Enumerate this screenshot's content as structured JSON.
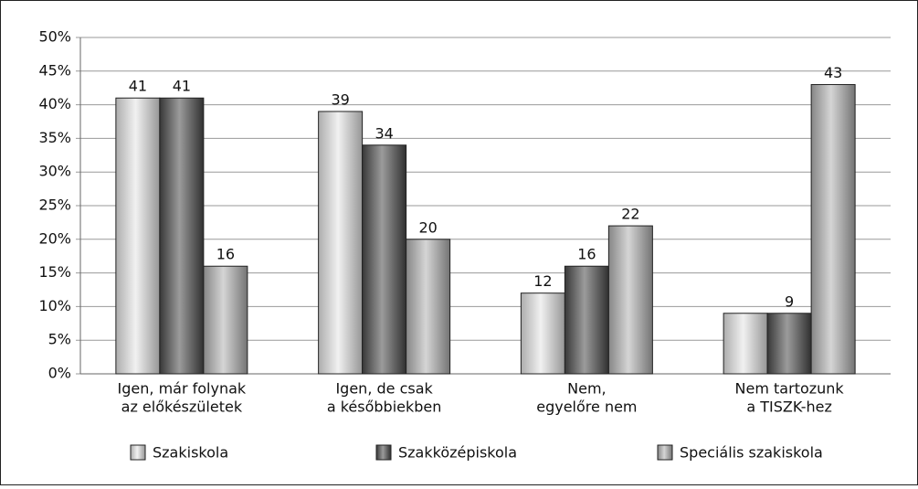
{
  "chart_data": {
    "type": "bar",
    "categories": [
      [
        "Igen, már folynak",
        "az előkészületek"
      ],
      [
        "Igen, de csak",
        "a későbbiekben"
      ],
      [
        "Nem,",
        "egyelőre nem"
      ],
      [
        "Nem tartozunk",
        "a TISZK-hez"
      ]
    ],
    "series": [
      {
        "name": "Szakiskola",
        "color": "#e6e6e6",
        "values": [
          41,
          39,
          12,
          9
        ],
        "value_labels": [
          "41",
          "39",
          "12",
          null
        ]
      },
      {
        "name": "Szakközépiskola",
        "color": "#4a4a4a",
        "values": [
          41,
          34,
          16,
          9
        ],
        "value_labels": [
          "41",
          "34",
          "16",
          "9"
        ]
      },
      {
        "name": "Speciális szakiskola",
        "color": "#b3b3b3",
        "values": [
          16,
          20,
          22,
          43
        ],
        "value_labels": [
          "16",
          "20",
          "22",
          "43"
        ]
      }
    ],
    "ylim": [
      0,
      50
    ],
    "yticks": [
      {
        "value": 0,
        "label": "0%"
      },
      {
        "value": 5,
        "label": "5%"
      },
      {
        "value": 10,
        "label": "10%"
      },
      {
        "value": 15,
        "label": "15%"
      },
      {
        "value": 20,
        "label": "20%"
      },
      {
        "value": 25,
        "label": "25%"
      },
      {
        "value": 30,
        "label": "30%"
      },
      {
        "value": 35,
        "label": "35%"
      },
      {
        "value": 40,
        "label": "40%"
      },
      {
        "value": 45,
        "label": "45%"
      },
      {
        "value": 50,
        "label": "50%"
      }
    ],
    "grid": true
  }
}
